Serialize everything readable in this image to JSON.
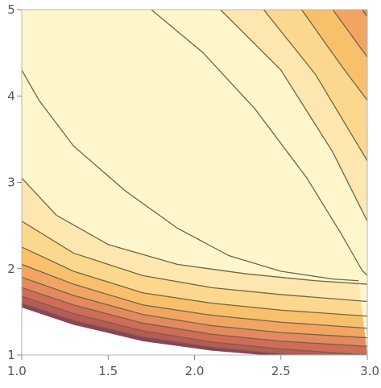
{
  "chart_data": {
    "type": "contour",
    "title": "",
    "xlabel": "",
    "ylabel": "",
    "xlim": [
      1.0,
      3.0
    ],
    "ylim": [
      1.0,
      5.0
    ],
    "x_ticks": [
      "1.0",
      "1.5",
      "2.0",
      "2.5",
      "3.0"
    ],
    "y_ticks": [
      "1",
      "2",
      "3",
      "4",
      "5"
    ],
    "grid": false,
    "legend": "none",
    "colormap": "light-yellow (high) to orange, red, dark red, navy blue (low)",
    "boundary_colors": [
      "#2f3f8c",
      "#914057",
      "#b85a57",
      "#d06c58",
      "#e58a5f",
      "#f2a563",
      "#f9c06c",
      "#fcd88f",
      "#fde6b0",
      "#fff6cc"
    ],
    "contour_line_color": "#6f6743",
    "contour_lines": [
      {
        "level": 9,
        "points": [
          [
            1.0,
            4.3
          ],
          [
            1.1,
            3.95
          ],
          [
            1.3,
            3.42
          ],
          [
            1.6,
            2.9
          ],
          [
            1.9,
            2.47
          ],
          [
            2.2,
            2.15
          ],
          [
            2.5,
            1.97
          ],
          [
            2.8,
            1.88
          ],
          [
            2.95,
            1.86
          ]
        ]
      },
      {
        "level": 9,
        "points": [
          [
            1.75,
            5.0
          ],
          [
            2.05,
            4.5
          ],
          [
            2.35,
            3.85
          ],
          [
            2.65,
            3.05
          ],
          [
            2.85,
            2.4
          ],
          [
            2.97,
            1.98
          ],
          [
            3.0,
            1.92
          ]
        ]
      },
      {
        "level": 8,
        "points": [
          [
            1.0,
            3.05
          ],
          [
            1.2,
            2.62
          ],
          [
            1.5,
            2.28
          ],
          [
            1.9,
            2.05
          ],
          [
            2.3,
            1.94
          ],
          [
            2.7,
            1.86
          ],
          [
            3.0,
            1.82
          ]
        ]
      },
      {
        "level": 8,
        "points": [
          [
            2.15,
            5.0
          ],
          [
            2.5,
            4.3
          ],
          [
            2.8,
            3.35
          ],
          [
            3.0,
            2.55
          ]
        ]
      },
      {
        "level": 7,
        "points": [
          [
            1.0,
            2.55
          ],
          [
            1.3,
            2.18
          ],
          [
            1.7,
            1.92
          ],
          [
            2.1,
            1.78
          ],
          [
            2.5,
            1.7
          ],
          [
            3.0,
            1.62
          ]
        ]
      },
      {
        "level": 7,
        "points": [
          [
            2.4,
            5.0
          ],
          [
            2.7,
            4.25
          ],
          [
            3.0,
            3.25
          ]
        ]
      },
      {
        "level": 6,
        "points": [
          [
            1.0,
            2.25
          ],
          [
            1.3,
            1.97
          ],
          [
            1.7,
            1.72
          ],
          [
            2.1,
            1.6
          ],
          [
            2.5,
            1.52
          ],
          [
            3.0,
            1.45
          ]
        ]
      },
      {
        "level": 6,
        "points": [
          [
            2.62,
            5.0
          ],
          [
            2.85,
            4.35
          ],
          [
            3.0,
            3.95
          ]
        ]
      },
      {
        "level": 5,
        "points": [
          [
            1.0,
            2.05
          ],
          [
            1.3,
            1.82
          ],
          [
            1.7,
            1.58
          ],
          [
            2.1,
            1.46
          ],
          [
            2.5,
            1.38
          ],
          [
            3.0,
            1.31
          ]
        ]
      },
      {
        "level": 5,
        "points": [
          [
            2.8,
            5.0
          ],
          [
            3.0,
            4.45
          ]
        ]
      },
      {
        "level": 4,
        "points": [
          [
            1.0,
            1.9
          ],
          [
            1.3,
            1.69
          ],
          [
            1.7,
            1.47
          ],
          [
            2.1,
            1.34
          ],
          [
            2.5,
            1.26
          ],
          [
            3.0,
            1.2
          ]
        ]
      },
      {
        "level": 4,
        "points": [
          [
            2.97,
            5.0
          ],
          [
            3.0,
            4.92
          ]
        ]
      },
      {
        "level": 3,
        "points": [
          [
            1.0,
            1.78
          ],
          [
            1.3,
            1.58
          ],
          [
            1.7,
            1.37
          ],
          [
            2.1,
            1.24
          ],
          [
            2.5,
            1.16
          ],
          [
            3.0,
            1.1
          ]
        ]
      },
      {
        "level": 2,
        "points": [
          [
            1.0,
            1.68
          ],
          [
            1.3,
            1.48
          ],
          [
            1.7,
            1.28
          ],
          [
            2.1,
            1.15
          ],
          [
            2.5,
            1.07
          ],
          [
            2.85,
            1.02
          ],
          [
            3.0,
            1.0
          ]
        ]
      },
      {
        "level": 1,
        "points": [
          [
            1.0,
            1.6
          ],
          [
            1.3,
            1.4
          ],
          [
            1.7,
            1.21
          ],
          [
            2.1,
            1.09
          ],
          [
            2.5,
            1.01
          ],
          [
            2.6,
            1.0
          ]
        ]
      },
      {
        "level": 0,
        "points": [
          [
            1.0,
            1.55
          ],
          [
            1.3,
            1.35
          ],
          [
            1.7,
            1.16
          ],
          [
            2.1,
            1.05
          ],
          [
            2.4,
            1.0
          ]
        ]
      }
    ]
  }
}
